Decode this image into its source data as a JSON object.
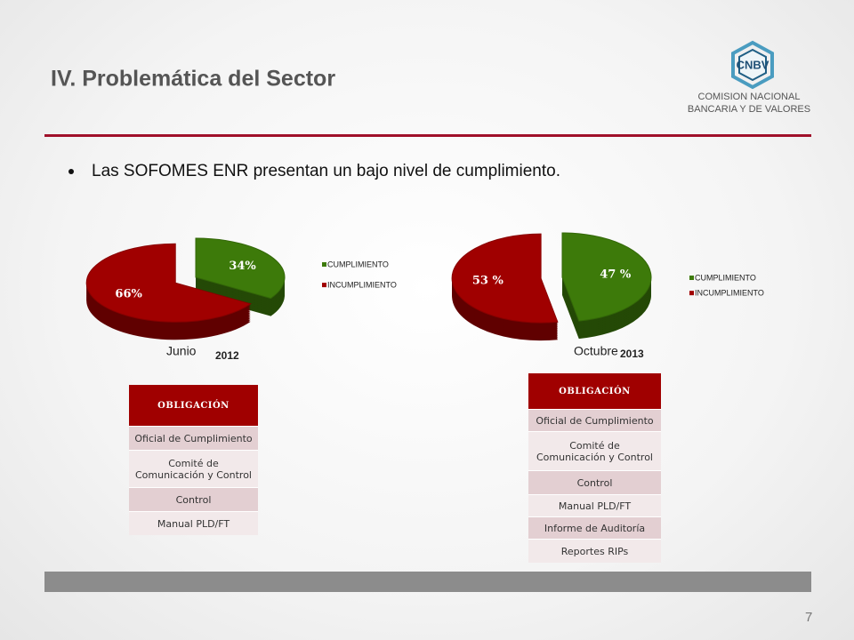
{
  "header": {
    "title": "IV. Problemática del Sector",
    "logo_abbr": "CNBV",
    "logo_line1": "COMISION NACIONAL",
    "logo_line2": "BANCARIA Y DE VALORES"
  },
  "bullet": "Las SOFOMES ENR presentan un bajo nivel de cumplimiento.",
  "chart_data": [
    {
      "type": "pie",
      "categories": [
        "CUMPLIMIENTO",
        "INCUMPLIMIENTO"
      ],
      "values": [
        34,
        66
      ],
      "value_labels": [
        "34%",
        "66%"
      ],
      "colors": [
        "#3d7a0a",
        "#a00000"
      ],
      "legend": "right",
      "caption_month": "Junio",
      "caption_year": "2012"
    },
    {
      "type": "pie",
      "categories": [
        "CUMPLIMIENTO",
        "INCUMPLIMIENTO"
      ],
      "values": [
        47,
        53
      ],
      "value_labels": [
        "47 %",
        "53 %"
      ],
      "colors": [
        "#3d7a0a",
        "#a00000"
      ],
      "legend": "right",
      "caption_month": "Octubre",
      "caption_year": "2013"
    }
  ],
  "tables": [
    {
      "header": "OBLIGACIÓN",
      "rows": [
        "Oficial de Cumplimiento",
        "Comité de Comunicación y Control",
        "Control",
        "Manual PLD/FT"
      ]
    },
    {
      "header": "OBLIGACIÓN",
      "rows": [
        "Oficial de Cumplimiento",
        "Comité de Comunicación y Control",
        "Control",
        "Manual PLD/FT",
        "Informe de Auditoría",
        "Reportes RIPs"
      ]
    }
  ],
  "page_number": "7"
}
